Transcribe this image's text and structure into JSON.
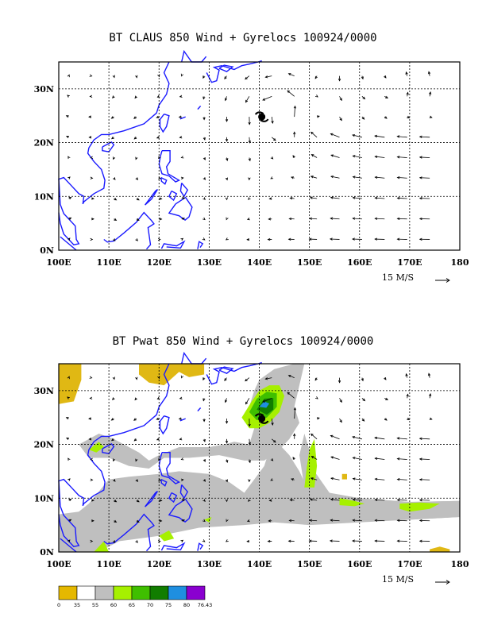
{
  "panels": [
    {
      "title": "BT CLAUS 850 Wind + Gyrelocs 100924/0000",
      "x_ticks": [
        "100E",
        "110E",
        "120E",
        "130E",
        "140E",
        "150E",
        "160E",
        "170E",
        "180"
      ],
      "y_ticks": [
        "0N",
        "10N",
        "20N",
        "30N"
      ],
      "ref_vector": "15 M/S"
    },
    {
      "title": "BT Pwat 850 Wind + Gyrelocs 100924/0000",
      "x_ticks": [
        "100E",
        "110E",
        "120E",
        "130E",
        "140E",
        "150E",
        "160E",
        "170E",
        "180"
      ],
      "y_ticks": [
        "0N",
        "10N",
        "20N",
        "30N"
      ],
      "ref_vector": "15 M/S"
    }
  ],
  "legend": {
    "labels": [
      "0",
      "35",
      "55",
      "60",
      "65",
      "70",
      "75",
      "80",
      "76.43"
    ],
    "colors": [
      "#e5b800",
      "#ffffff",
      "#bfbfbf",
      "#a6f000",
      "#3fbf00",
      "#117d00",
      "#1f8fe0",
      "#8a00d0"
    ]
  },
  "colors": {
    "coast": "#1a1aff",
    "grid": "#000000",
    "pwat_gray": "#bfbfbf",
    "pwat_yellow": "#e0b814",
    "pwat_lime": "#a6f000",
    "pwat_green": "#3fbf00",
    "pwat_dark": "#117d00",
    "pwat_blue": "#1f8fe0"
  }
}
